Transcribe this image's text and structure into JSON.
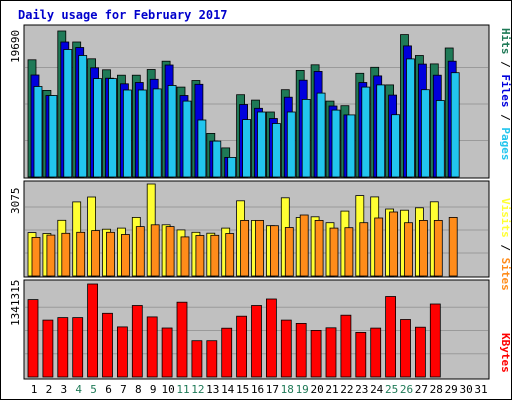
{
  "title": "Daily usage for February 2017",
  "colors": {
    "hits": "#1f7a57",
    "files": "#0000dd",
    "pages": "#22c5ee",
    "visits": "#ffff33",
    "sites": "#ff8c1a",
    "kbytes": "#ff0000",
    "weekend_label": "#1f7a57",
    "weekday_label": "#000000",
    "panel_bg": "#c0c0c0",
    "title": "#0000cc"
  },
  "chart_data": [
    {
      "type": "bar",
      "name": "top",
      "ylabel_max": "19690",
      "ymax": 19690,
      "legend": [
        {
          "text": "Hits",
          "color_key": "hits"
        },
        {
          "text": "Files",
          "color_key": "files"
        },
        {
          "text": "Pages",
          "color_key": "pages"
        }
      ],
      "series": [
        {
          "name": "Hits",
          "values": [
            15800,
            11680,
            19690,
            18210,
            15940,
            14460,
            13730,
            13730,
            14500,
            15620,
            12120,
            13010,
            5880,
            3920,
            11100,
            10370,
            8760,
            11770,
            14370,
            15130,
            10240,
            9620,
            13990,
            14790,
            12420,
            19200,
            16380,
            15250,
            17400,
            0,
            0
          ]
        },
        {
          "name": "Files",
          "values": [
            13750,
            10990,
            18210,
            17470,
            14730,
            13330,
            12570,
            12750,
            13180,
            15100,
            10990,
            12500,
            4840,
            2650,
            9780,
            9270,
            7890,
            10760,
            13060,
            14240,
            9570,
            8380,
            12750,
            13640,
            11050,
            17680,
            15230,
            13730,
            15620,
            0,
            0
          ]
        },
        {
          "name": "Pages",
          "values": [
            12200,
            10990,
            17190,
            16380,
            13270,
            13270,
            11730,
            11730,
            11880,
            12340,
            10240,
            7690,
            4840,
            2650,
            7740,
            8760,
            7210,
            8760,
            10460,
            11320,
            9020,
            8380,
            12120,
            12420,
            8400,
            15930,
            11770,
            10320,
            14060,
            0,
            0
          ]
        }
      ]
    },
    {
      "type": "bar",
      "name": "middle",
      "ylabel_max": "3075",
      "ymax": 3075,
      "legend": [
        {
          "text": "Visits",
          "color_key": "visits"
        },
        {
          "text": "Sites",
          "color_key": "sites"
        }
      ],
      "series": [
        {
          "name": "Visits",
          "values": [
            1452,
            1420,
            1863,
            2477,
            2641,
            1565,
            1600,
            1960,
            3075,
            1710,
            1540,
            1460,
            1430,
            1600,
            2515,
            1860,
            1680,
            2615,
            1955,
            1980,
            1780,
            2168,
            2688,
            2645,
            2240,
            2200,
            2280,
            2480,
            0,
            0,
            0
          ]
        },
        {
          "name": "Sites",
          "values": [
            1290,
            1366,
            1426,
            1462,
            1518,
            1460,
            1388,
            1650,
            1710,
            1650,
            1307,
            1353,
            1360,
            1420,
            1860,
            1860,
            1680,
            1620,
            2040,
            1860,
            1600,
            1615,
            1780,
            1940,
            2140,
            1780,
            1860,
            1860,
            1960,
            0,
            0
          ]
        }
      ]
    },
    {
      "type": "bar",
      "name": "bottom",
      "ylabel_max": "1341315",
      "ymax": 1341315,
      "legend": [
        {
          "text": "KBytes",
          "color_key": "kbytes"
        }
      ],
      "series": [
        {
          "name": "KBytes",
          "values": [
            1116190,
            821030,
            856000,
            856000,
            1341315,
            918610,
            722070,
            1031390,
            867390,
            706350,
            1078970,
            523880,
            523880,
            703680,
            876480,
            1031390,
            1124980,
            820900,
            773720,
            672690,
            709880,
            890730,
            642550,
            704580,
            1161180,
            829350,
            718620,
            1052800,
            0,
            0,
            0
          ]
        }
      ]
    }
  ],
  "x_labels": [
    "1",
    "2",
    "3",
    "4",
    "5",
    "6",
    "7",
    "8",
    "9",
    "10",
    "11",
    "12",
    "13",
    "14",
    "15",
    "16",
    "17",
    "18",
    "19",
    "20",
    "21",
    "22",
    "23",
    "24",
    "25",
    "26",
    "27",
    "28",
    "29",
    "30",
    "31"
  ],
  "x_weekend": [
    false,
    false,
    false,
    true,
    true,
    false,
    false,
    false,
    false,
    false,
    true,
    true,
    false,
    false,
    false,
    false,
    false,
    true,
    true,
    false,
    false,
    false,
    false,
    false,
    true,
    true,
    false,
    false,
    false,
    false,
    false
  ]
}
